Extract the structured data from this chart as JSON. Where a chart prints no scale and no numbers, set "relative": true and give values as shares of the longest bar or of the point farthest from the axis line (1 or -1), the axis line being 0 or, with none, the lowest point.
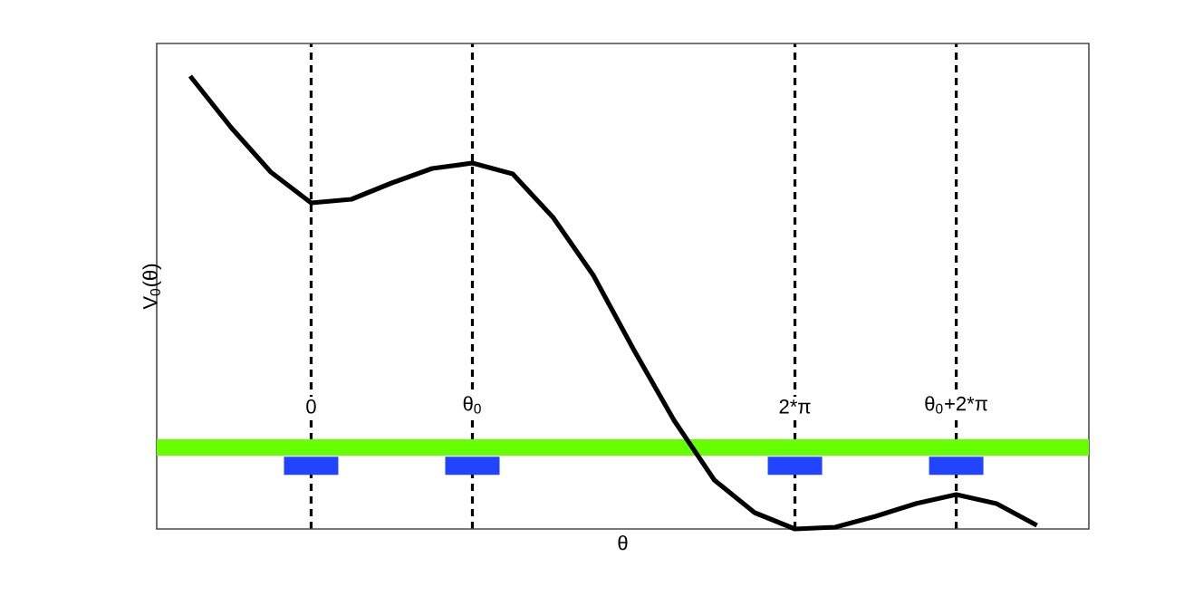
{
  "chart_data": {
    "type": "line",
    "relative": true,
    "xlabel": "θ",
    "ylabel": "V$_{0}$(θ)",
    "tick_labels": "x",
    "grid": "x",
    "categories": [
      null,
      null,
      null,
      "0",
      null,
      null,
      null,
      "θ$_{0}$",
      null,
      null,
      null,
      null,
      null,
      null,
      null,
      "2*π",
      null,
      null,
      null,
      "θ$_{0}$+2*π",
      null,
      null
    ],
    "series": [
      {
        "color": "#000000",
        "values": [
          1.0,
          0.888,
          0.788,
          0.72,
          0.728,
          0.764,
          0.796,
          0.808,
          0.784,
          0.688,
          0.56,
          0.396,
          0.24,
          0.108,
          0.036,
          0,
          0.004,
          0.028,
          0.056,
          0.076,
          0.056,
          0.008
        ]
      }
    ],
    "bands": [
      {
        "axis": "y",
        "from": 0.162,
        "to": 0.198,
        "color": "#66ff00"
      }
    ]
  }
}
